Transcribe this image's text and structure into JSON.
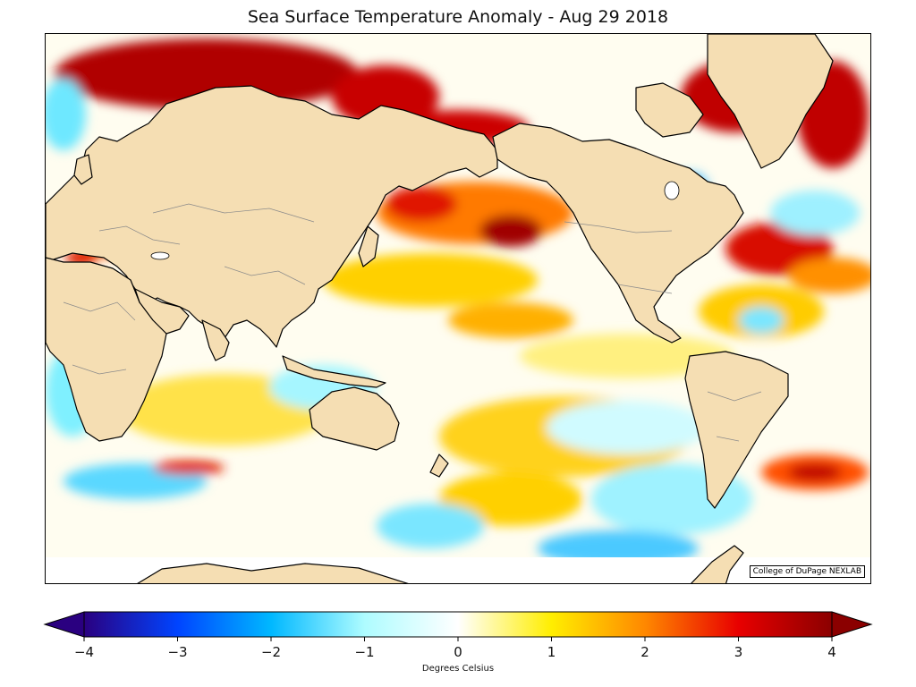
{
  "title": "Sea Surface Temperature Anomaly - Aug 29 2018",
  "credit": "College of DuPage NEXLAB",
  "colorbar": {
    "label": "Degrees Celsius",
    "min": -4,
    "max": 4,
    "ticks": [
      -4,
      -3,
      -2,
      -1,
      0,
      1,
      2,
      3,
      4
    ],
    "tick_labels": [
      "−4",
      "−3",
      "−2",
      "−1",
      "0",
      "1",
      "2",
      "3",
      "4"
    ],
    "colors": [
      "#2a0080",
      "#0044ff",
      "#00b8ff",
      "#aefcff",
      "#ffffff",
      "#ffee00",
      "#ff8800",
      "#e80000",
      "#8b0000"
    ]
  },
  "colors": {
    "land": "#f5deb3",
    "coast": "#000000",
    "border": "#888888"
  }
}
